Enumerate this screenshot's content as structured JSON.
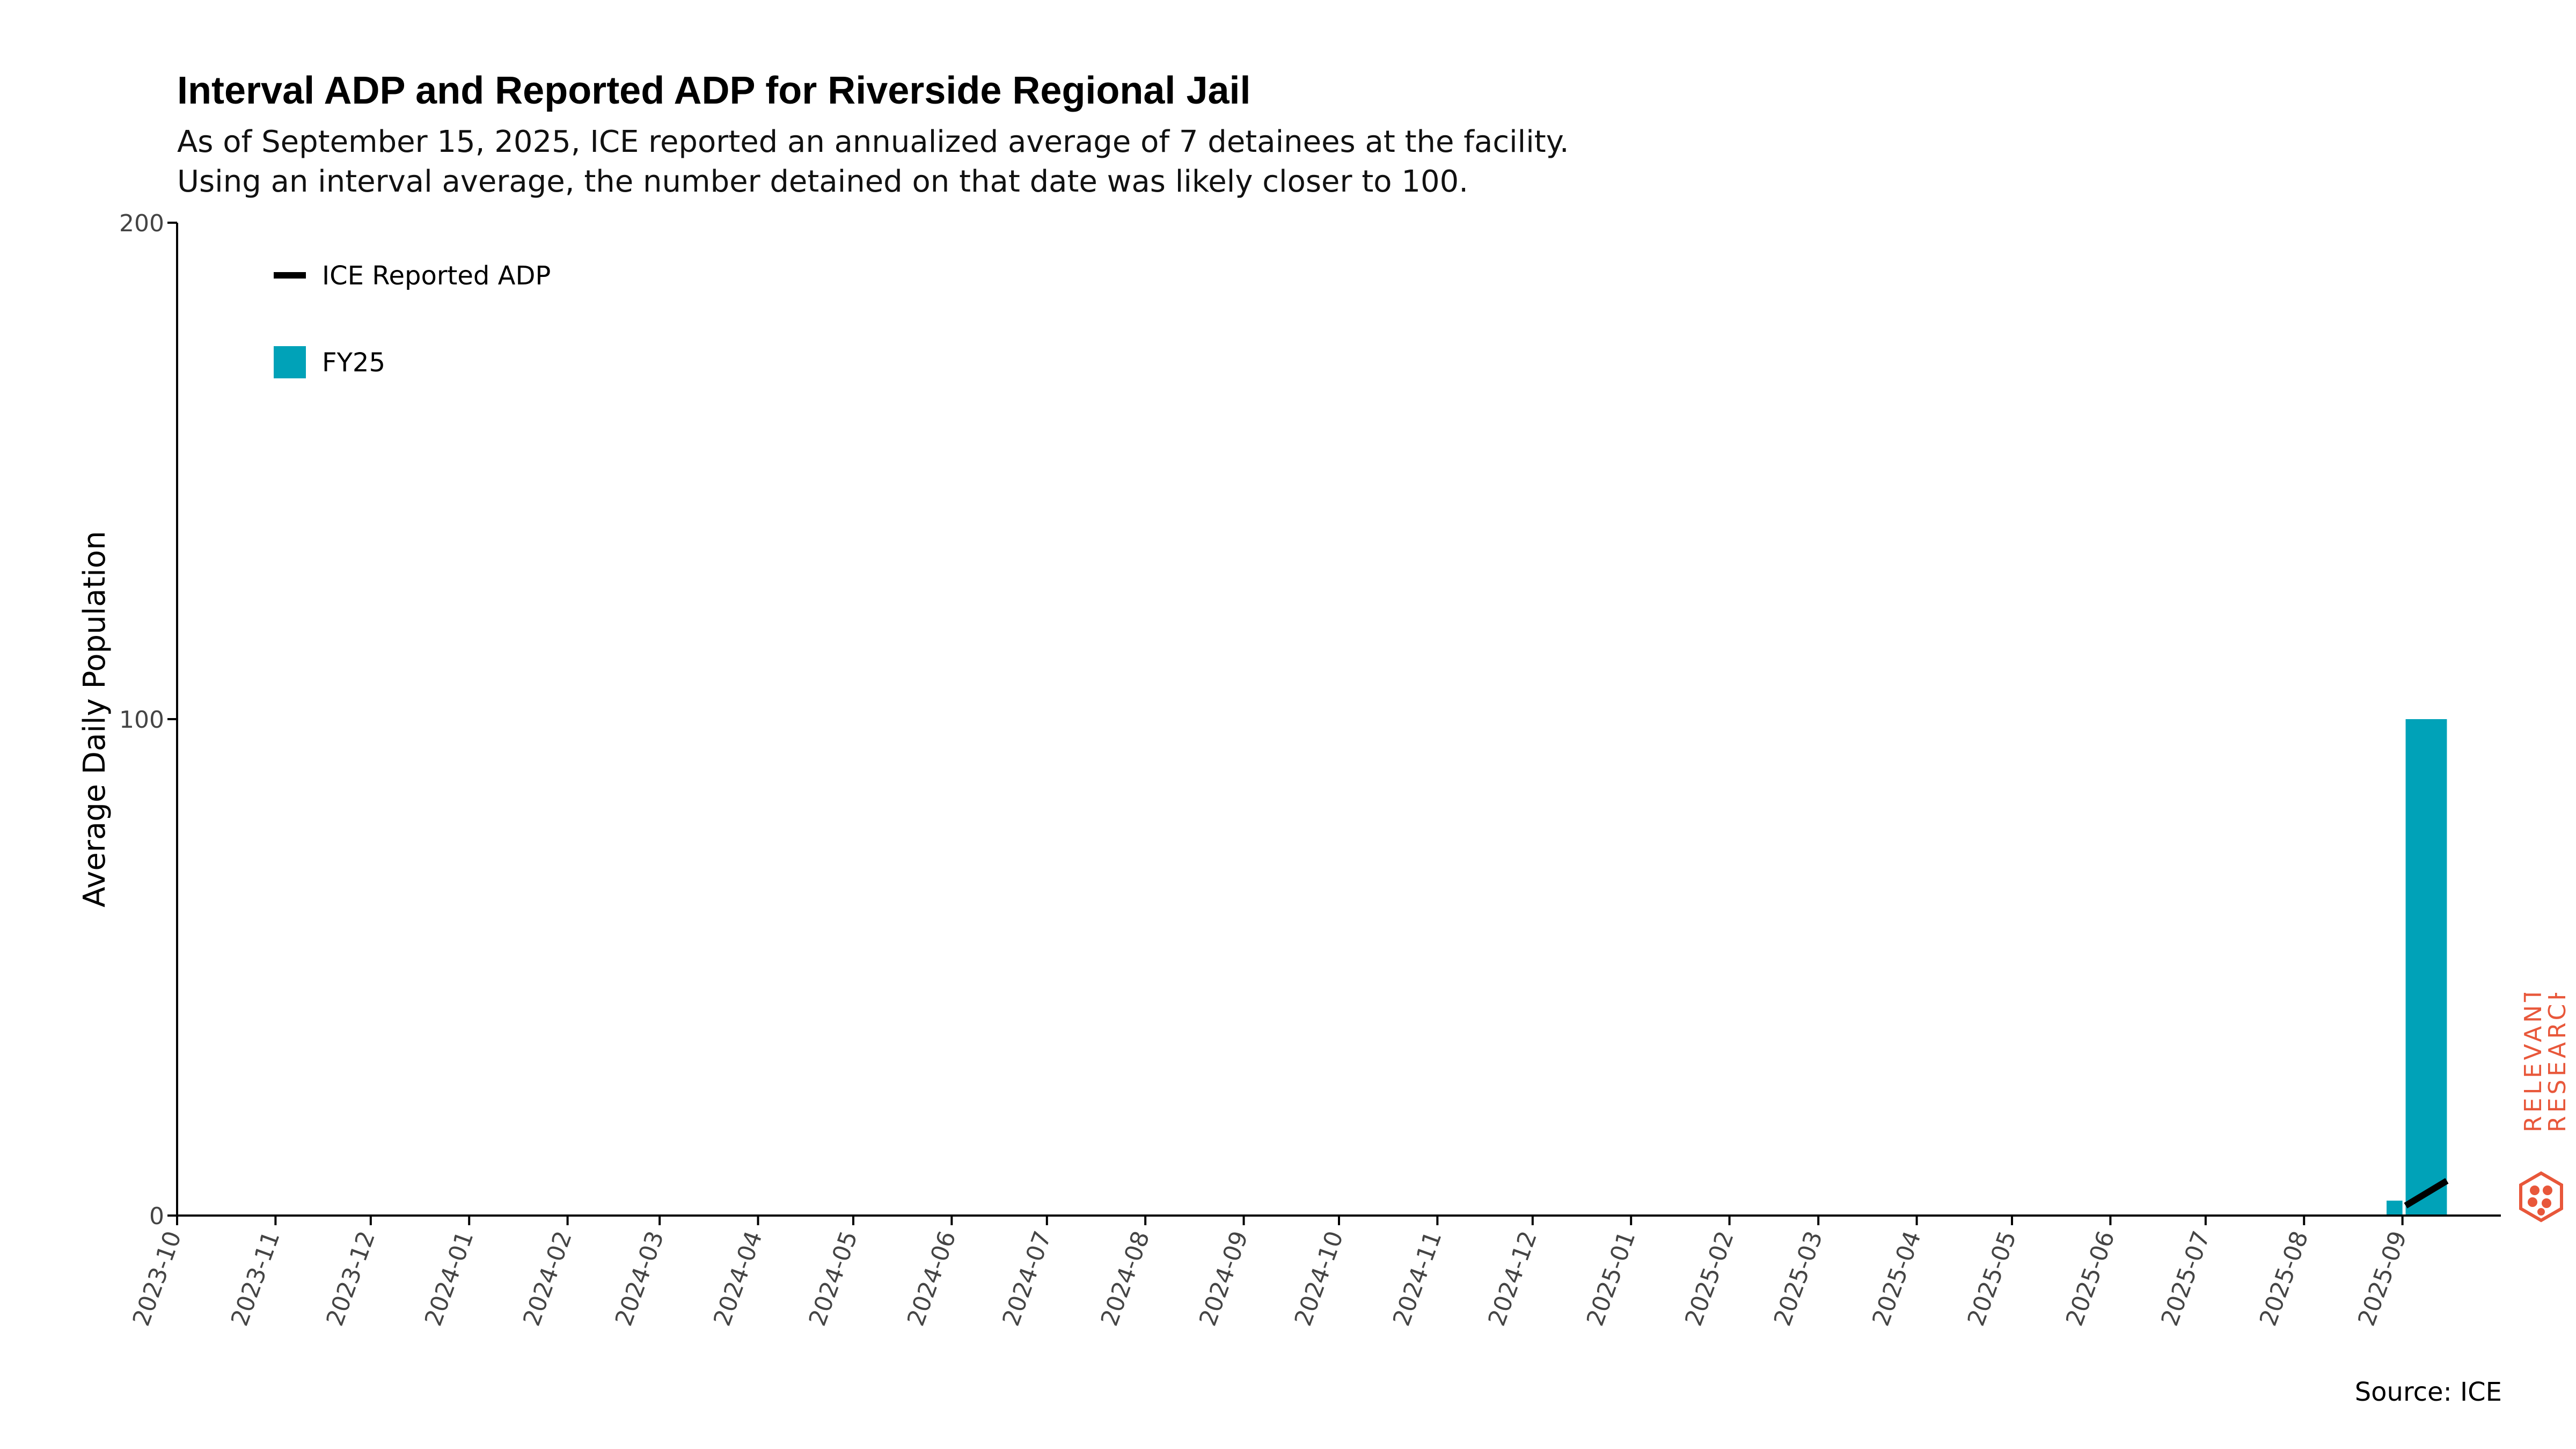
{
  "title": "Interval ADP and Reported ADP for Riverside Regional Jail",
  "subtitle_lines": [
    "As of September 15, 2025, ICE reported an annualized average of 7 detainees at the facility.",
    "Using an interval average, the number detained on that date was likely closer to 100."
  ],
  "source": "Source: ICE",
  "brand": {
    "line1": "RELEVANT",
    "line2": "RESEARCH",
    "color": "#e8573a"
  },
  "colors": {
    "bar": "#00a2b8",
    "line": "#000000",
    "axis": "#000000",
    "tick_text": "#444444"
  },
  "chart_data": {
    "type": "bar",
    "title": "Interval ADP and Reported ADP for Riverside Regional Jail",
    "ylabel": "Average Daily Population",
    "xlabel": "",
    "ylim": [
      0,
      200
    ],
    "yticks": [
      0,
      100,
      200
    ],
    "grid": false,
    "legend_position": "top-left",
    "x_ticks": [
      "2023-10",
      "2023-11",
      "2023-12",
      "2024-01",
      "2024-02",
      "2024-03",
      "2024-04",
      "2024-05",
      "2024-06",
      "2024-07",
      "2024-08",
      "2024-09",
      "2024-10",
      "2024-11",
      "2024-12",
      "2025-01",
      "2025-02",
      "2025-03",
      "2025-04",
      "2025-05",
      "2025-06",
      "2025-07",
      "2025-08",
      "2025-09"
    ],
    "series": [
      {
        "name": "FY25",
        "kind": "bar",
        "color": "#00a2b8",
        "points": [
          {
            "start": "2025-08-27",
            "end": "2025-09-01",
            "value": 3
          },
          {
            "start": "2025-09-02",
            "end": "2025-09-15",
            "value": 100
          }
        ]
      },
      {
        "name": "ICE Reported ADP",
        "kind": "line",
        "color": "#000000",
        "points": [
          {
            "x": "2025-09-02",
            "value": 2
          },
          {
            "x": "2025-09-15",
            "value": 7
          }
        ]
      }
    ]
  }
}
